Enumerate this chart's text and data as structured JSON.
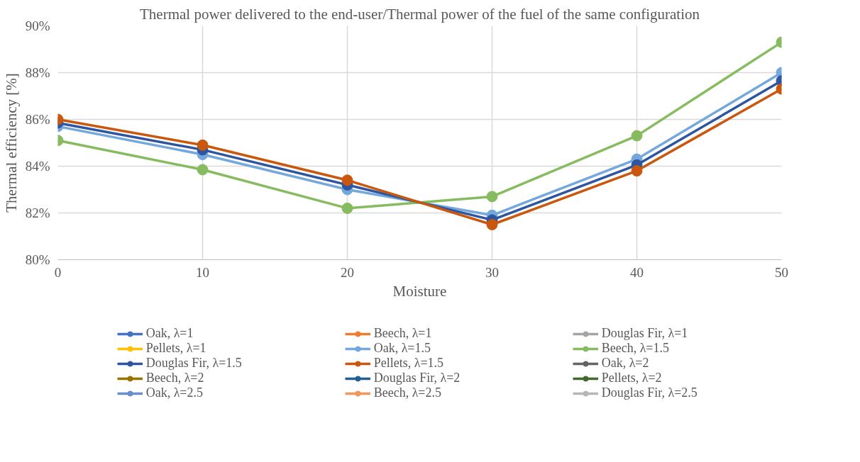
{
  "chart_data": {
    "type": "line",
    "title": "Thermal power delivered to the end-user/Thermal power of the fuel of the same configuration",
    "xlabel": "Moisture",
    "ylabel": "Thermal efficiency [%]",
    "x": [
      0,
      10,
      20,
      30,
      40,
      50
    ],
    "xlim": [
      0,
      50
    ],
    "xticks": [
      0,
      10,
      20,
      30,
      40,
      50
    ],
    "ylim": [
      80,
      90
    ],
    "yticks": [
      {
        "value": 80,
        "label": "80%"
      },
      {
        "value": 82,
        "label": "82%"
      },
      {
        "value": 84,
        "label": "84%"
      },
      {
        "value": 86,
        "label": "86%"
      },
      {
        "value": 88,
        "label": "88%"
      },
      {
        "value": 90,
        "label": "90%"
      }
    ],
    "grid": true,
    "legend": "bottom",
    "marker": "circle",
    "line_style": "solid",
    "series": [
      {
        "name": "Oak, λ=1",
        "color": "#4472c4",
        "values": [
          null,
          null,
          null,
          null,
          null,
          null
        ]
      },
      {
        "name": "Beech, λ=1",
        "color": "#ed7d31",
        "values": [
          null,
          null,
          null,
          null,
          null,
          null
        ]
      },
      {
        "name": "Douglas Fir, λ=1",
        "color": "#a5a5a5",
        "values": [
          null,
          null,
          null,
          null,
          null,
          null
        ]
      },
      {
        "name": "Pellets, λ=1",
        "color": "#ffc000",
        "values": [
          null,
          null,
          null,
          null,
          null,
          null
        ]
      },
      {
        "name": "Oak, λ=1.5",
        "color": "#74a8dc",
        "values": [
          85.7,
          84.5,
          83.0,
          81.9,
          84.3,
          88.0
        ]
      },
      {
        "name": "Beech, λ=1.5",
        "color": "#86bb5f",
        "values": [
          85.1,
          83.85,
          82.2,
          82.7,
          85.3,
          89.3
        ]
      },
      {
        "name": "Douglas Fir, λ=1.5",
        "color": "#2e56a0",
        "values": [
          85.85,
          84.7,
          83.2,
          81.7,
          84.05,
          87.65
        ]
      },
      {
        "name": "Pellets, λ=1.5",
        "color": "#c9580e",
        "values": [
          86.0,
          84.9,
          83.4,
          81.5,
          83.8,
          87.3
        ]
      },
      {
        "name": "Oak, λ=2",
        "color": "#636363",
        "values": [
          null,
          null,
          null,
          null,
          null,
          null
        ]
      },
      {
        "name": "Beech, λ=2",
        "color": "#997300",
        "values": [
          null,
          null,
          null,
          null,
          null,
          null
        ]
      },
      {
        "name": "Douglas Fir, λ=2",
        "color": "#255e91",
        "values": [
          null,
          null,
          null,
          null,
          null,
          null
        ]
      },
      {
        "name": "Pellets, λ=2",
        "color": "#43682b",
        "values": [
          null,
          null,
          null,
          null,
          null,
          null
        ]
      },
      {
        "name": "Oak, λ=2.5",
        "color": "#698ed0",
        "values": [
          null,
          null,
          null,
          null,
          null,
          null
        ]
      },
      {
        "name": "Beech, λ=2.5",
        "color": "#f1975a",
        "values": [
          null,
          null,
          null,
          null,
          null,
          null
        ]
      },
      {
        "name": "Douglas Fir, λ=2.5",
        "color": "#b7b7b7",
        "values": [
          null,
          null,
          null,
          null,
          null,
          null
        ]
      }
    ]
  }
}
